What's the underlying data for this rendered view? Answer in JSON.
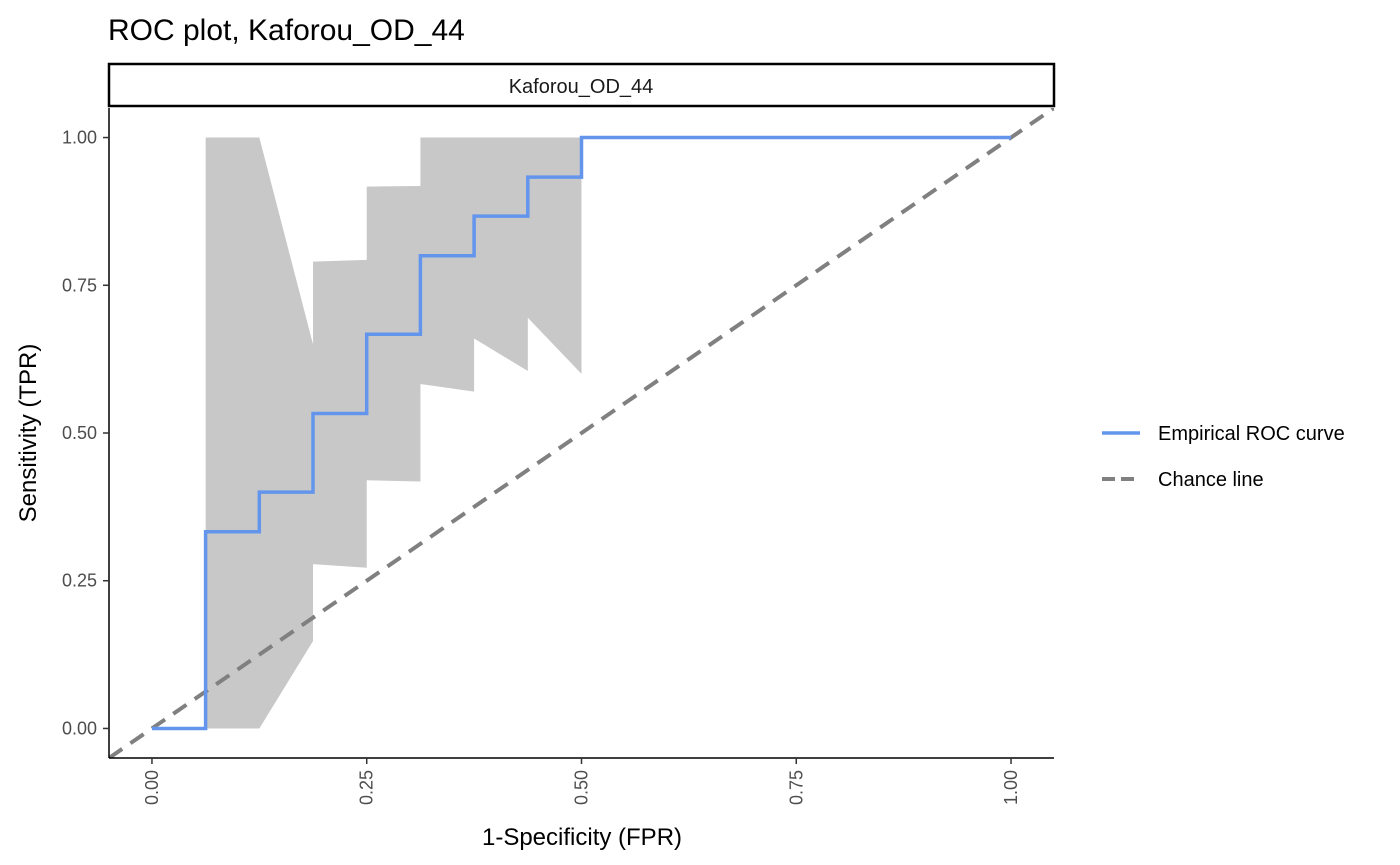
{
  "chart_data": {
    "type": "line",
    "title": "ROC plot, Kaforou_OD_44",
    "panel_label": "Kaforou_OD_44",
    "xlabel": "1-Specificity (FPR)",
    "ylabel": "Sensitivity (TPR)",
    "xlim": [
      -0.05,
      1.05
    ],
    "ylim": [
      -0.05,
      1.05
    ],
    "x_ticks": [
      0,
      0.25,
      0.5,
      0.75,
      1
    ],
    "x_tick_labels": [
      "0.00",
      "0.25",
      "0.50",
      "0.75",
      "1.00"
    ],
    "y_ticks": [
      0,
      0.25,
      0.5,
      0.75,
      1
    ],
    "y_tick_labels": [
      "0.00",
      "0.25",
      "0.50",
      "0.75",
      "1.00"
    ],
    "grid": false,
    "legend_position": "right",
    "series": [
      {
        "name": "Empirical ROC curve",
        "style": "solid",
        "color": "#6495ED",
        "x": [
          0,
          0.0625,
          0.0625,
          0.125,
          0.125,
          0.1875,
          0.1875,
          0.25,
          0.25,
          0.3125,
          0.3125,
          0.375,
          0.375,
          0.4375,
          0.4375,
          0.5,
          0.5,
          1.0
        ],
        "y": [
          0,
          0,
          0.333,
          0.333,
          0.4,
          0.4,
          0.533,
          0.533,
          0.667,
          0.667,
          0.8,
          0.8,
          0.867,
          0.867,
          0.933,
          0.933,
          1.0,
          1.0
        ]
      },
      {
        "name": "Chance line",
        "style": "dashed",
        "color": "#808080",
        "x": [
          -0.05,
          1.05
        ],
        "y": [
          -0.05,
          1.05
        ]
      }
    ],
    "confidence_band": {
      "color": "#C8C8C8",
      "x": [
        0.0625,
        0.125,
        0.1875,
        0.1875,
        0.25,
        0.25,
        0.3125,
        0.3125,
        0.375,
        0.375,
        0.4375,
        0.4375,
        0.5
      ],
      "upper": [
        1.0,
        1.0,
        0.65,
        0.79,
        0.793,
        0.917,
        0.918,
        1.0,
        1.0,
        1.0,
        1.0,
        1.0,
        1.0
      ],
      "lower": [
        0.0,
        0.0,
        0.148,
        0.278,
        0.272,
        0.42,
        0.418,
        0.583,
        0.57,
        0.66,
        0.605,
        0.695,
        0.6
      ]
    }
  }
}
